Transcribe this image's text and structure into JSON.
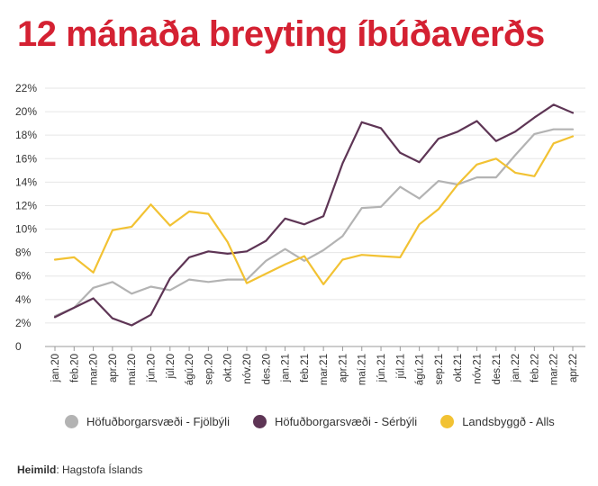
{
  "header": {
    "title": "12 mánaða breyting íbúðaverðs"
  },
  "colors": {
    "title": "#d42132",
    "grid": "#e6e6e6",
    "axis": "#999999"
  },
  "source": {
    "label": "Heimild",
    "text": ": Hagstofa Íslands"
  },
  "chart_data": {
    "type": "line",
    "title": "12 mánaða breyting íbúðaverðs",
    "ylim": [
      0,
      22
    ],
    "y_ticks": [
      0,
      2,
      4,
      6,
      8,
      10,
      12,
      14,
      16,
      18,
      20,
      22
    ],
    "y_tick_labels": [
      "0",
      "2%",
      "4%",
      "6%",
      "8%",
      "10%",
      "12%",
      "14%",
      "16%",
      "18%",
      "20%",
      "22%"
    ],
    "grid": true,
    "legend_position": "bottom",
    "categories": [
      "jan.20",
      "feb.20",
      "mar.20",
      "apr.20",
      "maí.20",
      "jún.20",
      "júl.20",
      "ágú.20",
      "sep.20",
      "okt.20",
      "nóv.20",
      "des.20",
      "jan.21",
      "feb.21",
      "mar.21",
      "apr.21",
      "maí.21",
      "jún.21",
      "júl.21",
      "ágú.21",
      "sep.21",
      "okt.21",
      "nóv.21",
      "des.21",
      "jan.22",
      "feb.22",
      "mar.22",
      "apr.22"
    ],
    "series": [
      {
        "name": "Höfuðborgarsvæði - Fjölbýli",
        "color": "#b3b3b3",
        "values": [
          2.6,
          3.3,
          5.0,
          5.5,
          4.5,
          5.1,
          4.8,
          5.7,
          5.5,
          5.7,
          5.7,
          7.3,
          8.3,
          7.3,
          8.2,
          9.4,
          11.8,
          11.9,
          13.6,
          12.6,
          14.1,
          13.8,
          14.4,
          14.4,
          16.3,
          18.1,
          18.5,
          18.5
        ]
      },
      {
        "name": "Höfuðborgarsvæði - Sérbýli",
        "color": "#5e3555",
        "values": [
          2.5,
          3.3,
          4.1,
          2.4,
          1.8,
          2.7,
          5.8,
          7.6,
          8.1,
          7.9,
          8.1,
          9.0,
          10.9,
          10.4,
          11.1,
          15.6,
          19.1,
          18.6,
          16.5,
          15.7,
          17.7,
          18.3,
          19.2,
          17.5,
          18.3,
          19.5,
          20.6,
          19.9
        ]
      },
      {
        "name": "Landsbyggð - Alls",
        "color": "#f2c233",
        "values": [
          7.4,
          7.6,
          6.3,
          9.9,
          10.2,
          12.1,
          10.3,
          11.5,
          11.3,
          8.9,
          5.4,
          6.2,
          7.0,
          7.7,
          5.3,
          7.4,
          7.8,
          7.7,
          7.6,
          10.4,
          11.7,
          13.8,
          15.5,
          16.0,
          14.8,
          14.5,
          17.3,
          17.9
        ]
      }
    ]
  }
}
